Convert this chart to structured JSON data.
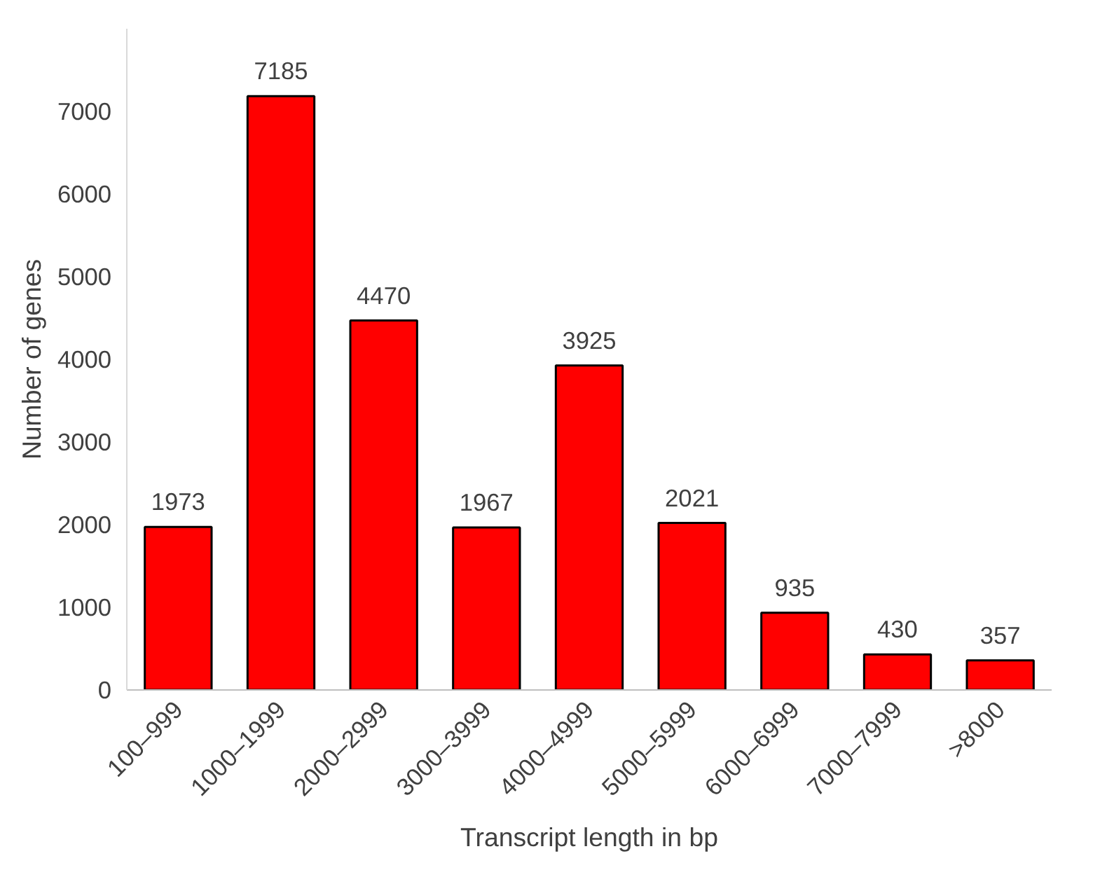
{
  "chart_data": {
    "type": "bar",
    "xlabel": "Transcript length in bp",
    "ylabel": "Number of genes",
    "categories": [
      "100–999",
      "1000–1999",
      "2000–2999",
      "3000–3999",
      "4000–4999",
      "5000–5999",
      "6000–6999",
      "7000–7999",
      ">8000"
    ],
    "values": [
      1973,
      7185,
      4470,
      1967,
      3925,
      2021,
      935,
      430,
      357
    ],
    "color": "#ff0000",
    "ylim": [
      0,
      8000
    ],
    "yticks": [
      0,
      1000,
      2000,
      3000,
      4000,
      5000,
      6000,
      7000
    ],
    "grid": false,
    "data_labels": true
  }
}
